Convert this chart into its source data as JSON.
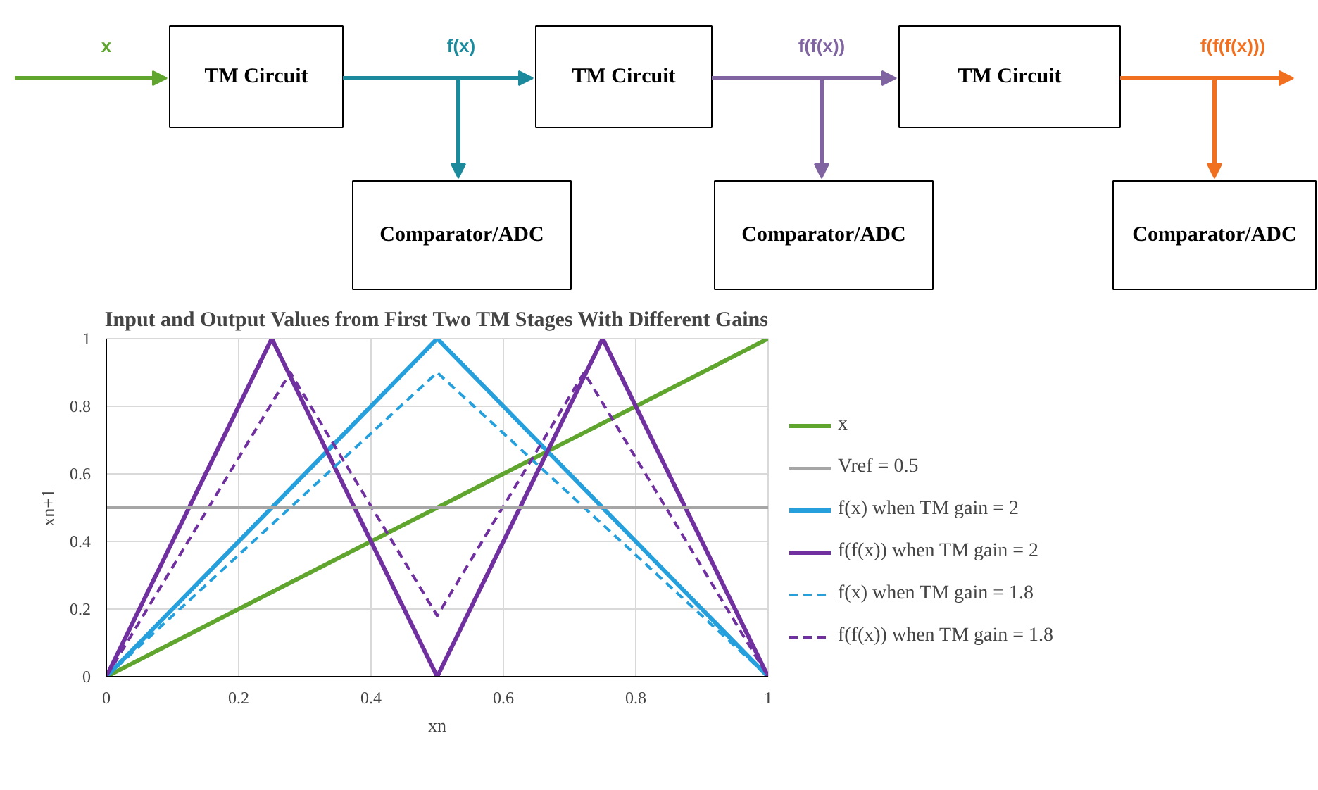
{
  "chart_data": {
    "type": "line",
    "title": "Input and Output Values from First Two TM Stages With Different Gains",
    "xlabel": "xn",
    "ylabel": "xn+1",
    "series": [
      {
        "name": "x",
        "color": "#5fa52e",
        "x": [
          0,
          1
        ],
        "values": [
          0,
          1
        ]
      },
      {
        "name": "f(x) when TM gain = 2",
        "color": "#25a0dc",
        "x": [
          0,
          0.5,
          1
        ],
        "values": [
          0,
          1,
          0
        ]
      },
      {
        "name": "f(f(x)) when TM gain = 2",
        "color": "#7030a0",
        "x": [
          0,
          0.25,
          0.5,
          0.75,
          1
        ],
        "values": [
          0,
          1,
          0,
          1,
          0
        ]
      },
      {
        "name": "f(x) when TM gain = 1.8",
        "color": "#25a0dc",
        "line_style": "dashed",
        "x": [
          0,
          0.5,
          1
        ],
        "values": [
          0,
          0.9,
          0
        ]
      },
      {
        "name": "f(f(x)) when TM gain = 1.8",
        "color": "#7030a0",
        "line_style": "dashed",
        "x": [
          0,
          0.278,
          0.5,
          0.722,
          1
        ],
        "values": [
          0,
          0.9,
          0.18,
          0.9,
          0
        ]
      }
    ],
    "ref_lines": [
      {
        "axis": "y",
        "value": 0.5,
        "label": "Vref = 0.5",
        "color": "#a6a6a6"
      }
    ],
    "xlim": [
      0,
      1
    ],
    "ylim": [
      0,
      1
    ],
    "xticks": [
      0,
      0.2,
      0.4,
      0.6,
      0.8,
      1
    ],
    "yticks": [
      0,
      0.2,
      0.4,
      0.6,
      0.8,
      1
    ],
    "grid": true,
    "legend": "right",
    "marker": "none",
    "line_style": "solid",
    "annotations": [
      "x",
      "f(x)",
      "f(f(x))",
      "f(f(f(x)))",
      "TM Circuit",
      "TM Circuit",
      "TM Circuit",
      "Comparator/ADC",
      "Comparator/ADC",
      "Comparator/ADC"
    ]
  }
}
